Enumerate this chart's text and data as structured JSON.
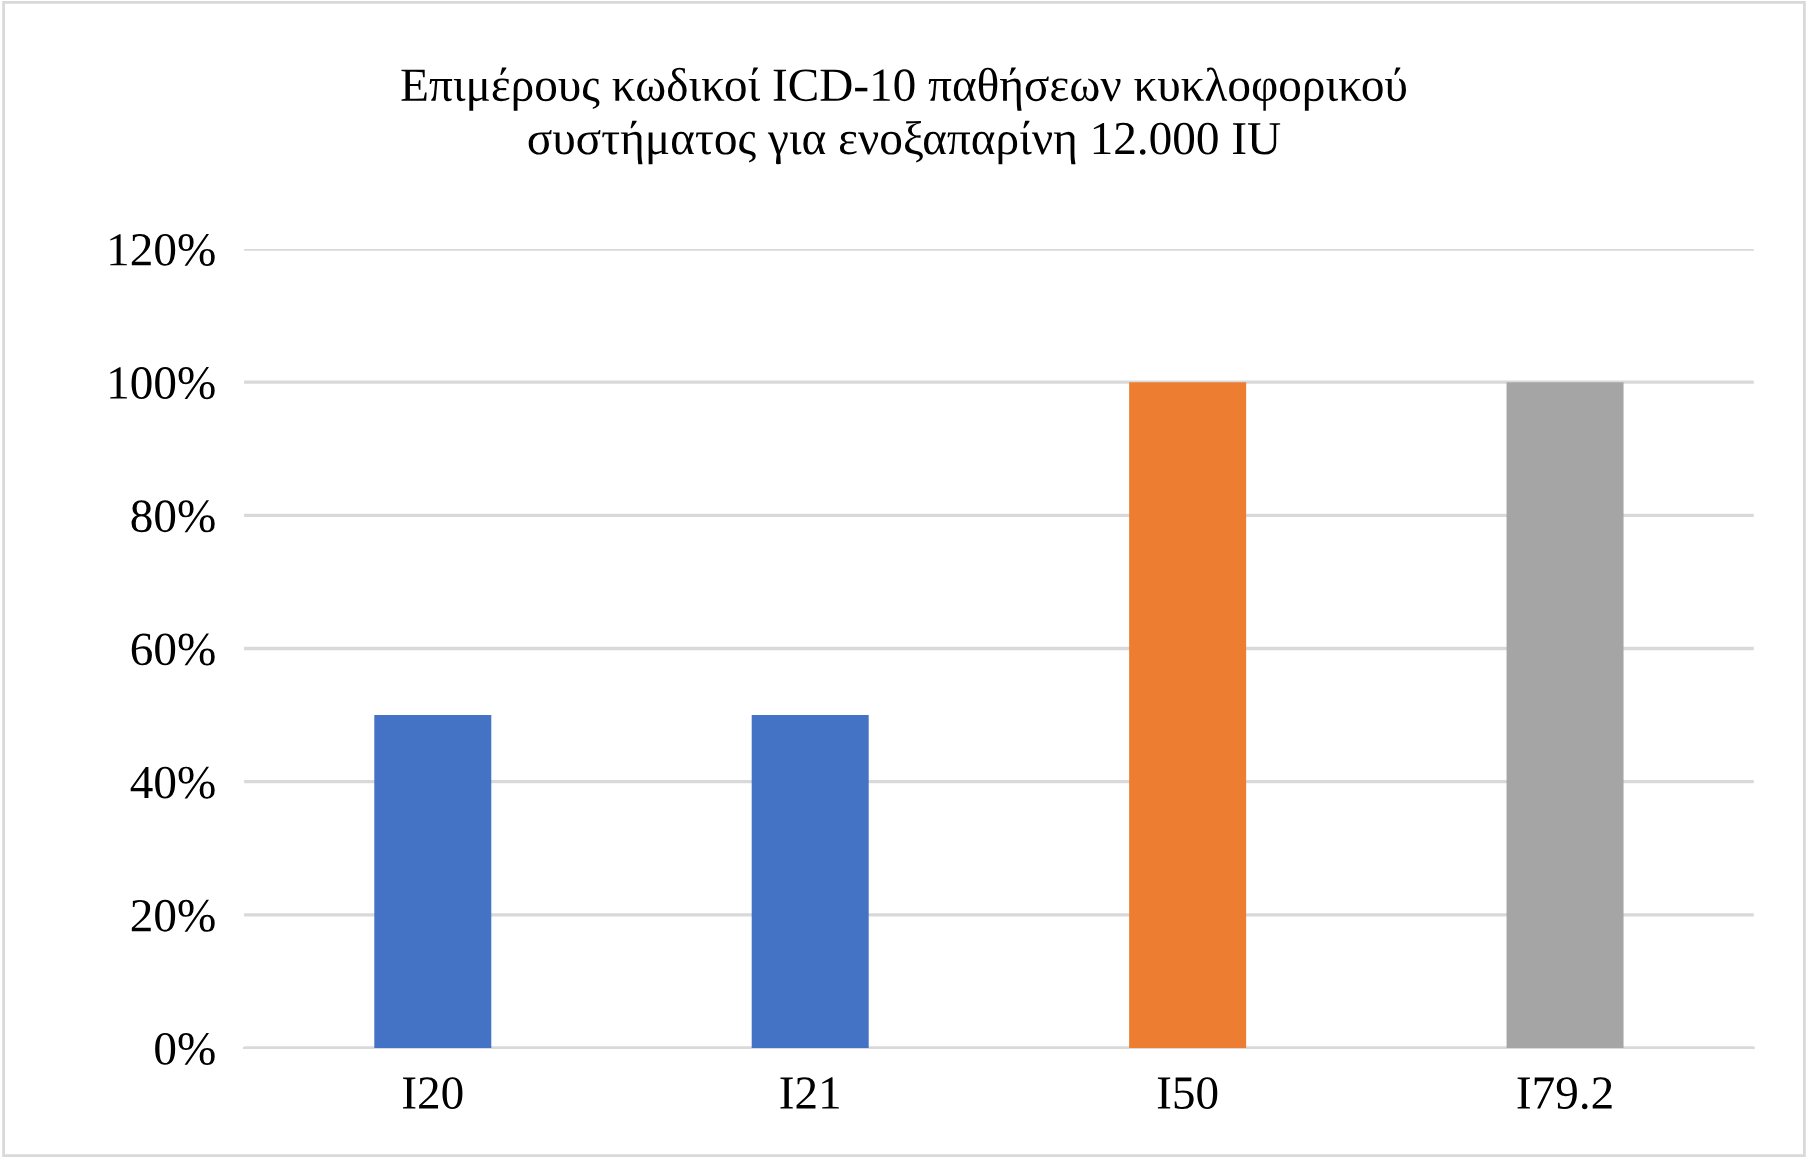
{
  "chart_data": {
    "type": "bar",
    "title": "Επιμέρους κωδικοί ICD-10 παθήσεων κυκλοφορικού\nσυστήματος για ενοξαπαρίνη 12.000 IU",
    "categories": [
      "I20",
      "I21",
      "I50",
      "I79.2"
    ],
    "values": [
      50,
      50,
      100,
      100
    ],
    "colors": [
      "#4472c4",
      "#4472c4",
      "#ed7d31",
      "#a5a5a5"
    ],
    "ylim": [
      0,
      120
    ],
    "yticks": [
      {
        "value": 0,
        "label": "0%"
      },
      {
        "value": 20,
        "label": "20%"
      },
      {
        "value": 40,
        "label": "40%"
      },
      {
        "value": 60,
        "label": "60%"
      },
      {
        "value": 80,
        "label": "80%"
      },
      {
        "value": 100,
        "label": "100%"
      },
      {
        "value": 120,
        "label": "120%"
      }
    ],
    "grid": "y"
  }
}
